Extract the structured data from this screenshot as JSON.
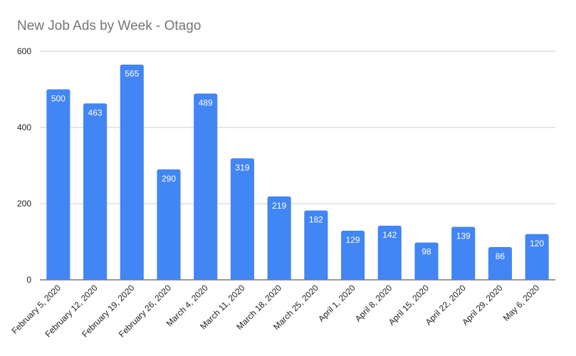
{
  "chart_data": {
    "type": "bar",
    "title": "New Job Ads by Week - Otago",
    "categories": [
      "February 5, 2020",
      "February 12, 2020",
      "February 19, 2020",
      "February 26, 2020",
      "March 4, 2020",
      "March 11, 2020",
      "March 18, 2020",
      "March 25, 2020",
      "April 1, 2020",
      "April 8, 2020",
      "April 15, 2020",
      "April 22, 2020",
      "April 29, 2020",
      "May 6, 2020"
    ],
    "values": [
      500,
      463,
      565,
      290,
      489,
      319,
      219,
      182,
      129,
      142,
      98,
      139,
      86,
      120
    ],
    "ylim": [
      0,
      600
    ],
    "yticks": [
      0,
      200,
      400,
      600
    ],
    "grid": true,
    "legend": "none",
    "bar_color": "#4285f4",
    "grid_color": "#cccccc",
    "baseline_color": "#333333"
  }
}
